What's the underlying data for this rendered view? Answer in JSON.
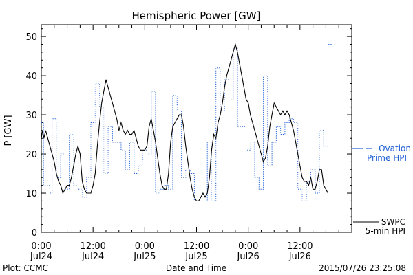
{
  "chart_data": {
    "type": "line",
    "title": "Hemispheric Power [GW]",
    "xlabel": "Date and Time",
    "ylabel": "P [GW]",
    "x_unit": "hours since 2015-07-24 00:00 UT",
    "xlim": [
      0,
      72
    ],
    "ylim": [
      0,
      53
    ],
    "grid": false,
    "yticks": [
      0,
      10,
      20,
      30,
      40,
      50
    ],
    "xticks": [
      {
        "x": 0,
        "line1": "0:00",
        "line2": "Jul24"
      },
      {
        "x": 12,
        "line1": "12:00",
        "line2": "Jul24"
      },
      {
        "x": 24,
        "line1": "0:00",
        "line2": "Jul25"
      },
      {
        "x": 36,
        "line1": "12:00",
        "line2": "Jul25"
      },
      {
        "x": 48,
        "line1": "0:00",
        "line2": "Jul26"
      },
      {
        "x": 60,
        "line1": "12:00",
        "line2": "Jul26"
      }
    ],
    "series": [
      {
        "name": "SWPC 5-min HPI",
        "legend_line1": "SWPC",
        "legend_line2": "5-min HPI",
        "style": "solid",
        "color": "#000000",
        "points": [
          [
            0,
            24
          ],
          [
            0.3,
            26
          ],
          [
            0.6,
            24
          ],
          [
            1,
            26
          ],
          [
            1.5,
            24
          ],
          [
            2,
            22
          ],
          [
            2.5,
            20
          ],
          [
            3,
            18
          ],
          [
            3.5,
            15
          ],
          [
            4,
            13
          ],
          [
            4.5,
            12
          ],
          [
            5,
            10
          ],
          [
            5.5,
            11
          ],
          [
            6,
            12
          ],
          [
            6.5,
            12
          ],
          [
            7,
            14
          ],
          [
            7.5,
            17
          ],
          [
            8,
            20
          ],
          [
            8.5,
            22
          ],
          [
            9,
            20
          ],
          [
            9.5,
            13
          ],
          [
            10,
            11
          ],
          [
            10.5,
            10
          ],
          [
            11,
            10
          ],
          [
            11.5,
            10
          ],
          [
            12,
            12
          ],
          [
            12.5,
            15
          ],
          [
            13,
            22
          ],
          [
            13.5,
            28
          ],
          [
            14,
            33
          ],
          [
            14.5,
            36
          ],
          [
            15,
            39
          ],
          [
            15.5,
            37
          ],
          [
            16,
            35
          ],
          [
            16.5,
            33
          ],
          [
            17,
            31
          ],
          [
            17.5,
            29
          ],
          [
            18,
            26
          ],
          [
            18.5,
            28
          ],
          [
            19,
            26
          ],
          [
            19.5,
            25
          ],
          [
            20,
            26
          ],
          [
            20.5,
            25
          ],
          [
            21,
            25
          ],
          [
            21.5,
            26
          ],
          [
            22,
            24
          ],
          [
            22.5,
            22
          ],
          [
            23,
            21
          ],
          [
            23.5,
            21
          ],
          [
            24,
            21
          ],
          [
            24.5,
            22
          ],
          [
            25,
            27
          ],
          [
            25.5,
            29
          ],
          [
            26,
            26
          ],
          [
            26.5,
            23
          ],
          [
            27,
            19
          ],
          [
            27.5,
            15
          ],
          [
            28,
            12
          ],
          [
            28.5,
            11
          ],
          [
            29,
            11
          ],
          [
            29.5,
            15
          ],
          [
            30,
            23
          ],
          [
            30.5,
            27
          ],
          [
            31,
            28
          ],
          [
            31.5,
            29
          ],
          [
            32,
            30
          ],
          [
            32.5,
            30
          ],
          [
            33,
            27
          ],
          [
            33.5,
            22
          ],
          [
            34,
            18
          ],
          [
            34.5,
            14
          ],
          [
            35,
            11
          ],
          [
            35.5,
            9
          ],
          [
            36,
            8
          ],
          [
            36.5,
            8
          ],
          [
            37,
            9
          ],
          [
            37.5,
            10
          ],
          [
            38,
            9
          ],
          [
            38.5,
            10
          ],
          [
            39,
            14
          ],
          [
            39.5,
            21
          ],
          [
            40,
            25
          ],
          [
            40.5,
            24
          ],
          [
            41,
            28
          ],
          [
            41.5,
            30
          ],
          [
            42,
            33
          ],
          [
            42.5,
            37
          ],
          [
            43,
            40
          ],
          [
            43.5,
            42
          ],
          [
            44,
            44
          ],
          [
            44.5,
            46
          ],
          [
            45,
            48
          ],
          [
            45.5,
            46
          ],
          [
            46,
            43
          ],
          [
            46.5,
            40
          ],
          [
            47,
            37
          ],
          [
            47.5,
            34
          ],
          [
            48,
            33
          ],
          [
            48.5,
            30
          ],
          [
            49,
            28
          ],
          [
            49.5,
            26
          ],
          [
            50,
            24
          ],
          [
            50.5,
            22
          ],
          [
            51,
            20
          ],
          [
            51.5,
            18
          ],
          [
            52,
            19
          ],
          [
            52.5,
            22
          ],
          [
            53,
            27
          ],
          [
            53.5,
            30
          ],
          [
            54,
            33
          ],
          [
            54.5,
            32
          ],
          [
            55,
            31
          ],
          [
            55.5,
            30
          ],
          [
            56,
            31
          ],
          [
            56.5,
            30
          ],
          [
            57,
            31
          ],
          [
            57.5,
            30
          ],
          [
            58,
            28
          ],
          [
            58.5,
            26
          ],
          [
            59,
            23
          ],
          [
            59.5,
            20
          ],
          [
            60,
            17
          ],
          [
            60.5,
            14
          ],
          [
            61,
            13
          ],
          [
            61.5,
            13
          ],
          [
            62,
            12
          ],
          [
            62.5,
            14
          ],
          [
            63,
            11
          ],
          [
            63.5,
            11
          ],
          [
            64,
            13
          ],
          [
            64.5,
            16
          ],
          [
            65,
            16
          ],
          [
            65.5,
            12
          ],
          [
            66,
            11
          ],
          [
            66.5,
            10
          ]
        ]
      },
      {
        "name": "Ovation Prime HPI",
        "legend_line1": "Ovation",
        "legend_line2": "Prime HPI",
        "style": "dotted-step",
        "color": "#1f5fd6",
        "points": [
          [
            0,
            28
          ],
          [
            0.5,
            12
          ],
          [
            2,
            10
          ],
          [
            2.5,
            29
          ],
          [
            3.5,
            14
          ],
          [
            4.5,
            20
          ],
          [
            5.5,
            11
          ],
          [
            6.5,
            25
          ],
          [
            7.5,
            12
          ],
          [
            8.5,
            11
          ],
          [
            9.5,
            9
          ],
          [
            10.5,
            14
          ],
          [
            11.5,
            28
          ],
          [
            12.5,
            38
          ],
          [
            13.5,
            32
          ],
          [
            14.5,
            15
          ],
          [
            15.5,
            27
          ],
          [
            16.5,
            23
          ],
          [
            17.5,
            23
          ],
          [
            18.5,
            21
          ],
          [
            19.5,
            16
          ],
          [
            20.5,
            23
          ],
          [
            21.5,
            15
          ],
          [
            22.5,
            17
          ],
          [
            23.5,
            21
          ],
          [
            24.5,
            20
          ],
          [
            25.5,
            36
          ],
          [
            26.5,
            10
          ],
          [
            27.5,
            11
          ],
          [
            28.5,
            12
          ],
          [
            29.5,
            11
          ],
          [
            30.5,
            35
          ],
          [
            31.5,
            31
          ],
          [
            32.5,
            14
          ],
          [
            33.5,
            16
          ],
          [
            34.5,
            15
          ],
          [
            35.5,
            8
          ],
          [
            36.5,
            8
          ],
          [
            37.5,
            8
          ],
          [
            38.5,
            23
          ],
          [
            39.5,
            8
          ],
          [
            40.5,
            42
          ],
          [
            41.5,
            31
          ],
          [
            42.5,
            39
          ],
          [
            43.5,
            34
          ],
          [
            44.5,
            47
          ],
          [
            45.5,
            27
          ],
          [
            46.5,
            27
          ],
          [
            47.5,
            21
          ],
          [
            48.5,
            23
          ],
          [
            49.5,
            14
          ],
          [
            50.5,
            11
          ],
          [
            51.5,
            40
          ],
          [
            52.5,
            17
          ],
          [
            53.5,
            23
          ],
          [
            54.5,
            27
          ],
          [
            55.5,
            25
          ],
          [
            56.5,
            28
          ],
          [
            57.5,
            29
          ],
          [
            58.5,
            28
          ],
          [
            59.5,
            11
          ],
          [
            60.5,
            8
          ],
          [
            61.5,
            13
          ],
          [
            62.5,
            16
          ],
          [
            63.5,
            10
          ],
          [
            64.5,
            26
          ],
          [
            65.5,
            22
          ],
          [
            66.5,
            48
          ]
        ]
      }
    ]
  },
  "footer": {
    "left": "Plot: CCMC",
    "right": "2015/07/26 23:25:08"
  }
}
